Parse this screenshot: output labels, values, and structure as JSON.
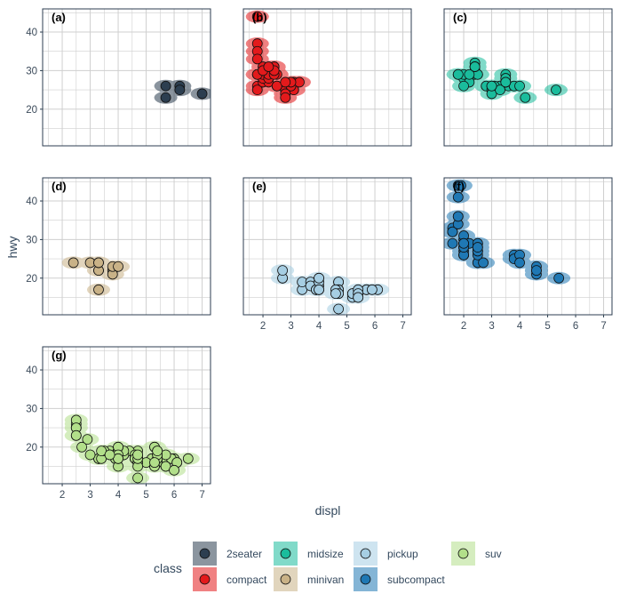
{
  "chart_data": {
    "type": "scatter",
    "facet_by": "class",
    "x_label": "displ",
    "y_label": "hwy",
    "xlim": [
      1.3,
      7.3
    ],
    "ylim": [
      10.5,
      46
    ],
    "x_ticks": [
      2,
      3,
      4,
      5,
      6,
      7
    ],
    "y_ticks": [
      20,
      30,
      40
    ],
    "grid": true,
    "legend": {
      "title": "class",
      "position": "bottom",
      "entries": [
        "2seater",
        "compact",
        "midsize",
        "pickup",
        "subcompact",
        "suv",
        "minivan"
      ]
    },
    "panels": [
      {
        "label": "(a)",
        "class": "2seater",
        "color": "#2c3e50",
        "points": [
          [
            5.7,
            26
          ],
          [
            5.7,
            23
          ],
          [
            6.2,
            26
          ],
          [
            6.2,
            25
          ],
          [
            7.0,
            24
          ]
        ]
      },
      {
        "label": "(b)",
        "class": "compact",
        "color": "#e31a1c",
        "points": [
          [
            1.8,
            29
          ],
          [
            1.8,
            29
          ],
          [
            2.0,
            31
          ],
          [
            2.0,
            30
          ],
          [
            2.8,
            26
          ],
          [
            2.8,
            26
          ],
          [
            3.1,
            27
          ],
          [
            1.8,
            26
          ],
          [
            1.8,
            25
          ],
          [
            2.0,
            28
          ],
          [
            2.0,
            27
          ],
          [
            2.8,
            25
          ],
          [
            2.8,
            25
          ],
          [
            3.1,
            25
          ],
          [
            3.1,
            25
          ],
          [
            2.2,
            27
          ],
          [
            2.2,
            29
          ],
          [
            2.4,
            31
          ],
          [
            2.4,
            31
          ],
          [
            3.0,
            26
          ],
          [
            3.0,
            26
          ],
          [
            3.3,
            27
          ],
          [
            1.8,
            44
          ],
          [
            1.8,
            37
          ],
          [
            1.8,
            35
          ],
          [
            1.8,
            33
          ],
          [
            1.9,
            29
          ],
          [
            2.0,
            29
          ],
          [
            2.0,
            28
          ],
          [
            2.0,
            29
          ],
          [
            2.5,
            26
          ],
          [
            2.5,
            26
          ],
          [
            2.8,
            24
          ],
          [
            2.8,
            23
          ],
          [
            2.5,
            29
          ],
          [
            2.5,
            26
          ],
          [
            2.2,
            28
          ],
          [
            2.2,
            29
          ],
          [
            2.4,
            29
          ],
          [
            2.4,
            30
          ],
          [
            3.0,
            27
          ],
          [
            1.8,
            29
          ],
          [
            2.0,
            30
          ],
          [
            2.8,
            27
          ],
          [
            2.2,
            31
          ]
        ]
      },
      {
        "label": "(c)",
        "class": "midsize",
        "color": "#1abc9c",
        "points": [
          [
            2.4,
            30
          ],
          [
            2.4,
            32
          ],
          [
            3.1,
            26
          ],
          [
            3.5,
            29
          ],
          [
            3.6,
            26
          ],
          [
            2.4,
            29
          ],
          [
            3.0,
            26
          ],
          [
            3.3,
            26
          ],
          [
            3.3,
            26
          ],
          [
            3.3,
            26
          ],
          [
            3.8,
            26
          ],
          [
            3.8,
            26
          ],
          [
            4.0,
            26
          ],
          [
            1.8,
            29
          ],
          [
            1.8,
            29
          ],
          [
            2.0,
            28
          ],
          [
            2.0,
            29
          ],
          [
            2.8,
            26
          ],
          [
            2.8,
            26
          ],
          [
            3.1,
            26
          ],
          [
            2.4,
            30
          ],
          [
            2.4,
            31
          ],
          [
            2.5,
            29
          ],
          [
            2.5,
            29
          ],
          [
            3.5,
            27
          ],
          [
            3.5,
            27
          ],
          [
            3.0,
            25
          ],
          [
            3.0,
            24
          ],
          [
            3.5,
            28
          ],
          [
            3.3,
            25
          ],
          [
            4.2,
            23
          ],
          [
            5.3,
            25
          ],
          [
            2.2,
            27
          ],
          [
            2.2,
            29
          ],
          [
            2.4,
            31
          ],
          [
            2.4,
            31
          ],
          [
            3.0,
            26
          ],
          [
            3.0,
            26
          ],
          [
            3.5,
            27
          ],
          [
            1.8,
            29
          ],
          [
            2.0,
            26
          ]
        ]
      },
      {
        "label": "(d)",
        "class": "minivan",
        "color": "#c9b287",
        "points": [
          [
            2.4,
            24
          ],
          [
            3.0,
            24
          ],
          [
            3.3,
            22
          ],
          [
            3.3,
            22
          ],
          [
            3.3,
            24
          ],
          [
            3.3,
            24
          ],
          [
            3.3,
            17
          ],
          [
            3.8,
            22
          ],
          [
            3.8,
            21
          ],
          [
            3.8,
            23
          ],
          [
            4.0,
            23
          ]
        ]
      },
      {
        "label": "(e)",
        "class": "pickup",
        "color": "#a6cee3",
        "points": [
          [
            2.7,
            20
          ],
          [
            2.7,
            20
          ],
          [
            2.7,
            22
          ],
          [
            3.4,
            17
          ],
          [
            3.4,
            19
          ],
          [
            4.0,
            18
          ],
          [
            4.7,
            17
          ],
          [
            4.7,
            19
          ],
          [
            4.7,
            19
          ],
          [
            5.7,
            17
          ],
          [
            6.1,
            17
          ],
          [
            3.7,
            19
          ],
          [
            3.7,
            18
          ],
          [
            3.9,
            17
          ],
          [
            3.9,
            17
          ],
          [
            4.7,
            17
          ],
          [
            4.7,
            12
          ],
          [
            4.7,
            17
          ],
          [
            5.2,
            16
          ],
          [
            5.2,
            15
          ],
          [
            5.7,
            17
          ],
          [
            5.9,
            17
          ],
          [
            4.7,
            16
          ],
          [
            5.2,
            16
          ],
          [
            4.0,
            20
          ],
          [
            4.0,
            17
          ],
          [
            4.6,
            17
          ],
          [
            5.4,
            17
          ],
          [
            5.4,
            16
          ],
          [
            4.0,
            19
          ],
          [
            4.0,
            20
          ],
          [
            4.7,
            16
          ],
          [
            5.4,
            15
          ],
          [
            4.0,
            17
          ],
          [
            4.6,
            16
          ],
          [
            5.4,
            15
          ]
        ]
      },
      {
        "label": "(f)",
        "class": "subcompact",
        "color": "#1f78b4",
        "points": [
          [
            3.8,
            26
          ],
          [
            3.8,
            25
          ],
          [
            4.0,
            26
          ],
          [
            4.0,
            24
          ],
          [
            4.6,
            21
          ],
          [
            4.6,
            22
          ],
          [
            4.6,
            23
          ],
          [
            4.6,
            22
          ],
          [
            5.4,
            20
          ],
          [
            1.6,
            33
          ],
          [
            1.6,
            32
          ],
          [
            1.6,
            32
          ],
          [
            1.6,
            29
          ],
          [
            1.6,
            32
          ],
          [
            1.8,
            34
          ],
          [
            1.8,
            36
          ],
          [
            1.8,
            36
          ],
          [
            2.0,
            29
          ],
          [
            2.0,
            26
          ],
          [
            2.0,
            27
          ],
          [
            2.0,
            30
          ],
          [
            2.0,
            31
          ],
          [
            2.0,
            26
          ],
          [
            2.0,
            26
          ],
          [
            2.0,
            28
          ],
          [
            2.0,
            26
          ],
          [
            2.5,
            29
          ],
          [
            2.5,
            28
          ],
          [
            2.5,
            27
          ],
          [
            2.5,
            24
          ],
          [
            2.5,
            24
          ],
          [
            2.7,
            24
          ],
          [
            1.8,
            44
          ],
          [
            1.8,
            41
          ],
          [
            1.9,
            44
          ],
          [
            2.0,
            29
          ],
          [
            2.0,
            26
          ],
          [
            2.0,
            28
          ],
          [
            2.2,
            29
          ],
          [
            2.2,
            29
          ],
          [
            2.5,
            27
          ],
          [
            2.5,
            26
          ],
          [
            2.5,
            27
          ],
          [
            2.0,
            29
          ],
          [
            2.0,
            28
          ],
          [
            2.5,
            29
          ],
          [
            2.5,
            28
          ],
          [
            2.0,
            29
          ],
          [
            2.0,
            29
          ]
        ]
      },
      {
        "label": "(g)",
        "class": "suv",
        "color": "#b2df8a",
        "points": [
          [
            5.3,
            20
          ],
          [
            5.3,
            15
          ],
          [
            5.3,
            20
          ],
          [
            5.7,
            17
          ],
          [
            6.0,
            17
          ],
          [
            5.7,
            17
          ],
          [
            6.5,
            17
          ],
          [
            3.7,
            19
          ],
          [
            3.7,
            18
          ],
          [
            3.9,
            17
          ],
          [
            3.9,
            17
          ],
          [
            4.7,
            17
          ],
          [
            4.7,
            17
          ],
          [
            4.7,
            17
          ],
          [
            5.2,
            17
          ],
          [
            5.7,
            17
          ],
          [
            5.9,
            17
          ],
          [
            4.7,
            18
          ],
          [
            4.7,
            12
          ],
          [
            4.7,
            17
          ],
          [
            4.7,
            19
          ],
          [
            5.7,
            18
          ],
          [
            6.1,
            16
          ],
          [
            4.0,
            19
          ],
          [
            4.2,
            18
          ],
          [
            4.4,
            19
          ],
          [
            4.6,
            17
          ],
          [
            5.4,
            18
          ],
          [
            5.4,
            17
          ],
          [
            5.4,
            16
          ],
          [
            4.0,
            19
          ],
          [
            4.0,
            19
          ],
          [
            4.0,
            18
          ],
          [
            4.0,
            19
          ],
          [
            4.6,
            17
          ],
          [
            5.0,
            16
          ],
          [
            4.2,
            18
          ],
          [
            4.2,
            19
          ],
          [
            4.6,
            18
          ],
          [
            4.6,
            17
          ],
          [
            5.4,
            17
          ],
          [
            5.4,
            17
          ],
          [
            3.3,
            17
          ],
          [
            3.3,
            17
          ],
          [
            4.0,
            20
          ],
          [
            4.7,
            16
          ],
          [
            5.7,
            15
          ],
          [
            6.1,
            16
          ],
          [
            5.4,
            19
          ],
          [
            5.4,
            18
          ],
          [
            5.7,
            15
          ],
          [
            6.0,
            14
          ],
          [
            3.4,
            17
          ],
          [
            3.5,
            19
          ],
          [
            4.0,
            20
          ],
          [
            4.0,
            15
          ],
          [
            4.7,
            15
          ],
          [
            4.7,
            17
          ],
          [
            5.3,
            15
          ],
          [
            5.3,
            16
          ],
          [
            2.5,
            26
          ],
          [
            2.5,
            25
          ],
          [
            2.5,
            27
          ],
          [
            2.5,
            25
          ],
          [
            2.5,
            23
          ],
          [
            2.5,
            23
          ],
          [
            2.9,
            22
          ],
          [
            2.7,
            20
          ],
          [
            4.0,
            17
          ],
          [
            4.0,
            18
          ],
          [
            4.0,
            17
          ],
          [
            4.7,
            18
          ],
          [
            3.4,
            19
          ],
          [
            5.4,
            19
          ],
          [
            3.0,
            18
          ],
          [
            3.7,
            18
          ]
        ]
      }
    ],
    "legend_colors": {
      "2seater": "#2c3e50",
      "compact": "#e31a1c",
      "midsize": "#1abc9c",
      "minivan": "#c9b287",
      "pickup": "#a6cee3",
      "subcompact": "#1f78b4",
      "suv": "#b2df8a"
    }
  }
}
